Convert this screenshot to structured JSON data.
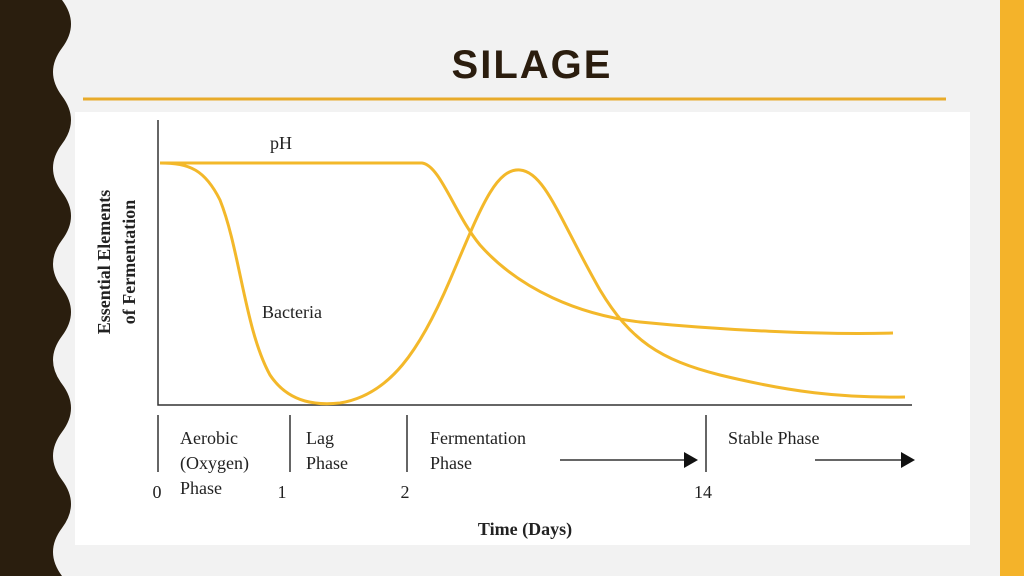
{
  "slide": {
    "title": "SILAGE"
  },
  "figure": {
    "y_label": [
      "Essential Elements",
      "of Fermentation"
    ],
    "curves": [
      {
        "label": "pH"
      },
      {
        "label": "Bacteria"
      }
    ],
    "phases": [
      {
        "label": [
          "Aerobic",
          "(Oxygen)",
          "Phase"
        ]
      },
      {
        "label": [
          "Lag",
          "Phase"
        ]
      },
      {
        "label": [
          "Fermentation",
          "Phase"
        ]
      },
      {
        "label": [
          "Stable Phase"
        ]
      }
    ],
    "ticks": [
      "0",
      "1",
      "2",
      "14"
    ],
    "x_label": "Time (Days)"
  }
}
